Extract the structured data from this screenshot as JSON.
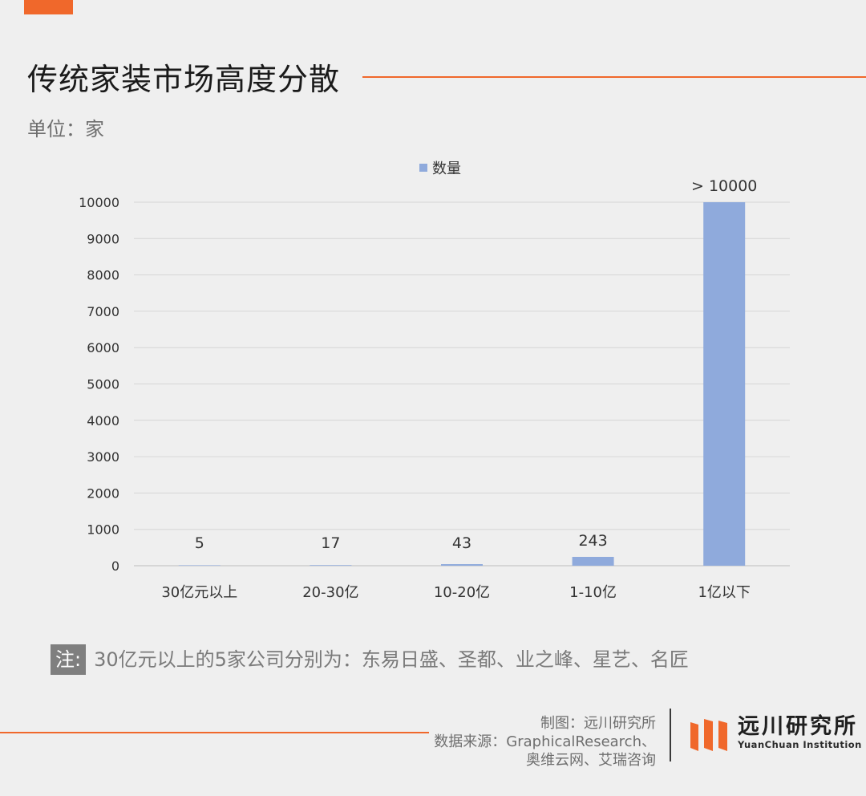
{
  "header": {
    "title": "传统家装市场高度分散",
    "unit": "单位：家"
  },
  "chart_data": {
    "type": "bar",
    "categories": [
      "30亿元以上",
      "20-30亿",
      "10-20亿",
      "1-10亿",
      "1亿以下"
    ],
    "series": [
      {
        "name": "数量",
        "values": [
          5,
          17,
          43,
          243,
          10000
        ]
      }
    ],
    "data_labels": [
      "5",
      "17",
      "43",
      "243",
      "> 10000"
    ],
    "ylim": [
      0,
      10000
    ],
    "yticks": [
      0,
      1000,
      2000,
      3000,
      4000,
      5000,
      6000,
      7000,
      8000,
      9000,
      10000
    ],
    "grid": true,
    "legend_position": "top",
    "bar_color": "#8faadc"
  },
  "note": {
    "tag": "注:",
    "text": "30亿元以上的5家公司分别为：东易日盛、圣都、业之峰、星艺、名匠"
  },
  "footer": {
    "credit_lines": [
      "制图：远川研究所",
      "数据来源：GraphicalResearch、",
      "奥维云网、艾瑞咨询"
    ],
    "logo_cn": "远川研究所",
    "logo_en": "YuanChuan Institution"
  },
  "colors": {
    "accent": "#f0682b",
    "bar": "#8faadc",
    "background": "#efefef"
  }
}
